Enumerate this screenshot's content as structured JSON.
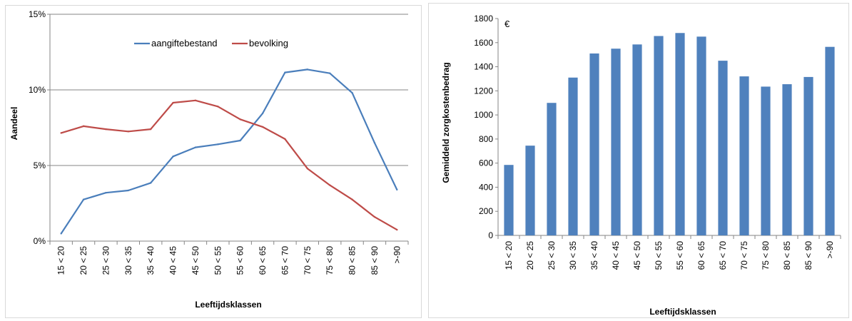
{
  "chart_data": [
    {
      "type": "line",
      "title": "",
      "xlabel": "Leeftijdsklassen",
      "ylabel": "Aandeel",
      "categories": [
        "15 < 20",
        "20 < 25",
        "25 < 30",
        "30 < 35",
        "35 < 40",
        "40 < 45",
        "45 < 50",
        "50 < 55",
        "55 < 60",
        "60 < 65",
        "65 < 70",
        "70 < 75",
        "75 < 80",
        "80 < 85",
        "85 < 90",
        ">-90"
      ],
      "yticks": [
        "0%",
        "5%",
        "10%",
        "15%"
      ],
      "ylim": [
        0,
        15
      ],
      "grid": "horizontal",
      "legend": "top-center",
      "series": [
        {
          "name": "aangiftebestand",
          "color": "#4a7ebb",
          "values": [
            0.5,
            2.75,
            3.2,
            3.35,
            3.85,
            5.6,
            6.2,
            6.4,
            6.65,
            8.45,
            11.15,
            11.35,
            11.1,
            9.8,
            6.5,
            3.4
          ]
        },
        {
          "name": "bevolking",
          "color": "#be4b48",
          "values": [
            7.15,
            7.6,
            7.4,
            7.25,
            7.4,
            9.15,
            9.3,
            8.9,
            8.05,
            7.55,
            6.75,
            4.8,
            3.7,
            2.75,
            1.6,
            0.75
          ]
        }
      ]
    },
    {
      "type": "bar",
      "title": "",
      "unit_label": "€",
      "xlabel": "Leeftijdsklassen",
      "ylabel": "Gemiddeld zorgkostenbedrag",
      "categories": [
        "15 < 20",
        "20 < 25",
        "25 < 30",
        "30 < 35",
        "35 < 40",
        "40 < 45",
        "45 < 50",
        "50 < 55",
        "55 < 60",
        "60 < 65",
        "65 < 70",
        "70 < 75",
        "75 < 80",
        "80 < 85",
        "85 < 90",
        ">-90"
      ],
      "yticks": [
        "0",
        "200",
        "400",
        "600",
        "800",
        "1000",
        "1200",
        "1400",
        "1600",
        "1800"
      ],
      "ylim": [
        0,
        1800
      ],
      "color": "#4f81bd",
      "values": [
        585,
        745,
        1100,
        1310,
        1510,
        1550,
        1585,
        1655,
        1680,
        1650,
        1450,
        1320,
        1235,
        1255,
        1315,
        1565
      ]
    }
  ]
}
